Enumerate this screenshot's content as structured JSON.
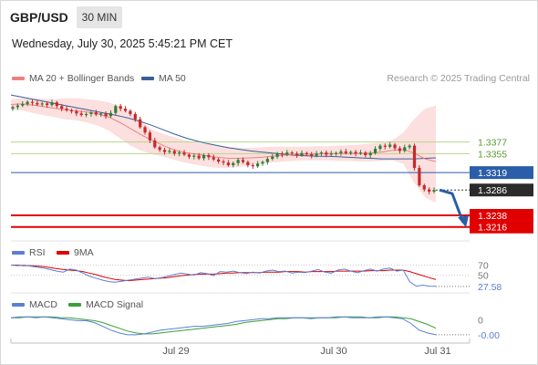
{
  "header": {
    "symbol": "GBP/USD",
    "interval": "30 MIN",
    "datetime": "Wednesday, July 30, 2025 5:45:21 PM CET",
    "copyright": "Research © 2025 Trading Central"
  },
  "colors": {
    "ma20": "#f08080",
    "ma50": "#3a5f9a",
    "bollinger": "#fbd4d4",
    "candle_up": "#2e7d32",
    "candle_down": "#c62828",
    "support_resistance": "#b5d88a",
    "current_line": "#2a5ea8",
    "red_level": "#e00000",
    "rsi": "#5b7fd6",
    "rsi_ma": "#e00000",
    "macd": "#5b7fd6",
    "macd_signal": "#3aa03a",
    "arrow": "#2a5ea8"
  },
  "chart_data": [
    {
      "type": "candlestick",
      "title": "GBP/USD",
      "legend": [
        "MA 20 + Bollinger Bands",
        "MA 50"
      ],
      "legend_position": "top-left",
      "x_tick_labels": [
        "Jul 29",
        "Jul 30",
        "Jul 31"
      ],
      "ylim": [
        1.32,
        1.348
      ],
      "closes": [
        1.3443,
        1.3446,
        1.3449,
        1.3453,
        1.3451,
        1.3448,
        1.345,
        1.3447,
        1.3452,
        1.3445,
        1.344,
        1.3437,
        1.3435,
        1.3431,
        1.3428,
        1.343,
        1.3433,
        1.3429,
        1.3431,
        1.3426,
        1.3432,
        1.3445,
        1.344,
        1.3436,
        1.343,
        1.342,
        1.3405,
        1.3395,
        1.338,
        1.3367,
        1.3362,
        1.3358,
        1.336,
        1.3355,
        1.3357,
        1.3353,
        1.3349,
        1.3351,
        1.3346,
        1.3352,
        1.3348,
        1.3344,
        1.334,
        1.3338,
        1.3333,
        1.3337,
        1.3343,
        1.3339,
        1.3333,
        1.3331,
        1.3336,
        1.3339,
        1.3345,
        1.3349,
        1.3355,
        1.3353,
        1.3357,
        1.3355,
        1.3352,
        1.3356,
        1.3354,
        1.3351,
        1.3355,
        1.3357,
        1.3353,
        1.3355,
        1.3356,
        1.3359,
        1.3356,
        1.3358,
        1.3355,
        1.3357,
        1.3352,
        1.3356,
        1.3364,
        1.337,
        1.3368,
        1.3372,
        1.3365,
        1.336,
        1.3367,
        1.337,
        1.3328,
        1.3295,
        1.3287,
        1.3283,
        1.3286
      ],
      "ma50": [
        1.3466,
        1.3462,
        1.3458,
        1.3454,
        1.345,
        1.3446,
        1.3442,
        1.3438,
        1.3434,
        1.343,
        1.3426,
        1.3421,
        1.3415,
        1.3408,
        1.34,
        1.3392,
        1.3385,
        1.3379,
        1.3374,
        1.337,
        1.3366,
        1.3363,
        1.336,
        1.3358,
        1.3356,
        1.3354,
        1.3352,
        1.3351,
        1.335,
        1.335,
        1.3349,
        1.3348,
        1.3347,
        1.3346,
        1.3345,
        1.3345,
        1.3345,
        1.3345,
        1.3346,
        1.3347
      ],
      "ma20": [
        1.3448,
        1.3449,
        1.3447,
        1.3444,
        1.3441,
        1.3438,
        1.3436,
        1.3434,
        1.343,
        1.3424,
        1.3414,
        1.3402,
        1.339,
        1.338,
        1.337,
        1.3362,
        1.3357,
        1.3354,
        1.3351,
        1.3348,
        1.3346,
        1.3346,
        1.3347,
        1.3348,
        1.335,
        1.3352,
        1.3353,
        1.3354,
        1.3354,
        1.3355,
        1.3355,
        1.3355,
        1.3355,
        1.3356,
        1.3358,
        1.3361,
        1.3363,
        1.3356,
        1.3345,
        1.334
      ],
      "boll_upper": [
        1.3458,
        1.346,
        1.346,
        1.3459,
        1.3458,
        1.346,
        1.346,
        1.3458,
        1.3456,
        1.3452,
        1.3445,
        1.3432,
        1.3415,
        1.34,
        1.3392,
        1.3386,
        1.338,
        1.3376,
        1.3373,
        1.337,
        1.3368,
        1.3366,
        1.3366,
        1.3367,
        1.3368,
        1.3368,
        1.3368,
        1.3368,
        1.3369,
        1.3369,
        1.337,
        1.3371,
        1.3372,
        1.3374,
        1.3376,
        1.338,
        1.3395,
        1.342,
        1.344,
        1.3446
      ],
      "boll_lower": [
        1.3438,
        1.3437,
        1.3432,
        1.3428,
        1.3424,
        1.342,
        1.3418,
        1.3414,
        1.3408,
        1.3398,
        1.3384,
        1.337,
        1.336,
        1.3354,
        1.3349,
        1.3343,
        1.3338,
        1.3334,
        1.333,
        1.3328,
        1.3328,
        1.333,
        1.3333,
        1.3336,
        1.3338,
        1.334,
        1.3341,
        1.3342,
        1.3342,
        1.3342,
        1.3341,
        1.3341,
        1.334,
        1.334,
        1.3341,
        1.3342,
        1.3336,
        1.33,
        1.3272,
        1.3262
      ],
      "levels": [
        {
          "value": 1.3377,
          "label": "1.3377",
          "kind": "resistance"
        },
        {
          "value": 1.3355,
          "label": "1.3355",
          "kind": "resistance"
        },
        {
          "value": 1.3319,
          "label": "1.3319",
          "kind": "pivot"
        },
        {
          "value": 1.3286,
          "label": "1.3286",
          "kind": "current"
        },
        {
          "value": 1.3238,
          "label": "1.3238",
          "kind": "support"
        },
        {
          "value": 1.3216,
          "label": "1.3216",
          "kind": "support"
        }
      ],
      "projection_arrow": {
        "from": 1.3286,
        "to": 1.3224,
        "direction": "down"
      }
    },
    {
      "type": "line",
      "title": "RSI",
      "legend": [
        "RSI",
        "9MA"
      ],
      "ylim": [
        20,
        80
      ],
      "y_tick_labels": [
        "70",
        "50"
      ],
      "last_value_label": "27.58",
      "series": [
        {
          "name": "RSI",
          "values": [
            70,
            69,
            70,
            68,
            66,
            64,
            61,
            58,
            56,
            62,
            60,
            54,
            48,
            44,
            40,
            37,
            36,
            38,
            40,
            42,
            44,
            46,
            43,
            45,
            48,
            51,
            54,
            52,
            50,
            55,
            53,
            49,
            57,
            56,
            58,
            55,
            53,
            56,
            54,
            58,
            60,
            57,
            58,
            54,
            56,
            55,
            58,
            61,
            56,
            54,
            60,
            62,
            58,
            55,
            59,
            62,
            58,
            62,
            64,
            58,
            60,
            37,
            28,
            30,
            28,
            27.58
          ]
        },
        {
          "name": "9MA",
          "values": [
            70,
            70,
            69,
            69,
            68,
            67,
            65,
            63,
            61,
            60,
            59,
            57,
            54,
            51,
            47,
            44,
            41,
            40,
            39,
            40,
            41,
            42,
            43,
            44,
            45,
            47,
            49,
            50,
            51,
            52,
            52,
            52,
            53,
            54,
            54,
            55,
            55,
            55,
            55,
            56,
            56,
            56,
            57,
            57,
            57,
            56,
            57,
            57,
            57,
            57,
            58,
            58,
            58,
            58,
            58,
            59,
            59,
            59,
            60,
            60,
            60,
            57,
            53,
            49,
            45,
            41
          ]
        }
      ]
    },
    {
      "type": "line",
      "title": "MACD",
      "legend": [
        "MACD",
        "MACD Signal"
      ],
      "ylim": [
        -0.0018,
        0.001
      ],
      "y_tick_labels": [
        "0",
        "-0.00"
      ],
      "series": [
        {
          "name": "MACD",
          "values": [
            0.0002,
            0.0003,
            0.0003,
            0.0002,
            0.0003,
            0.0002,
            0.0001,
            0.0,
            -0.0001,
            -0.0001,
            -0.0003,
            -0.0007,
            -0.0011,
            -0.0014,
            -0.0016,
            -0.0016,
            -0.0015,
            -0.0013,
            -0.0011,
            -0.001,
            -0.0009,
            -0.0008,
            -0.0007,
            -0.0007,
            -0.0006,
            -0.0005,
            -0.0004,
            -0.0002,
            -0.0001,
            0.0,
            0.0001,
            0.0001,
            0.0002,
            0.0002,
            0.0002,
            0.0002,
            0.0001,
            0.0002,
            0.0002,
            0.0003,
            0.0003,
            0.0002,
            0.0002,
            0.0002,
            0.0003,
            0.0003,
            0.0002,
            0.0001,
            -0.0004,
            -0.0011,
            -0.0014,
            -0.0016
          ]
        },
        {
          "name": "MACD Signal",
          "values": [
            0.0002,
            0.0002,
            0.0003,
            0.0003,
            0.0003,
            0.0003,
            0.0002,
            0.0002,
            0.0001,
            0.0,
            -0.0001,
            -0.0003,
            -0.0006,
            -0.0009,
            -0.0012,
            -0.0014,
            -0.0015,
            -0.0015,
            -0.0014,
            -0.0013,
            -0.0012,
            -0.0011,
            -0.001,
            -0.0009,
            -0.0008,
            -0.0007,
            -0.0006,
            -0.0005,
            -0.0003,
            -0.0002,
            -0.0001,
            0.0,
            0.0001,
            0.0001,
            0.0002,
            0.0002,
            0.0002,
            0.0002,
            0.0002,
            0.0002,
            0.0003,
            0.0003,
            0.0003,
            0.0002,
            0.0002,
            0.0003,
            0.0003,
            0.0002,
            0.0001,
            -0.0002,
            -0.0005,
            -0.0009
          ]
        }
      ]
    }
  ]
}
